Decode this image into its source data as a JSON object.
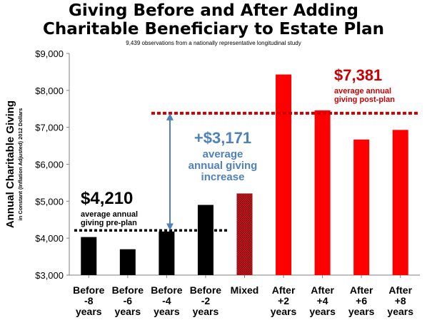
{
  "title_lines": [
    "Giving Before and After Adding",
    "Charitable Beneficiary to Estate Plan"
  ],
  "subtitle": "9,439 observations from a nationally representative longitudinal study",
  "chart_data": {
    "type": "bar",
    "categories": [
      [
        "Before",
        "-8",
        "years"
      ],
      [
        "Before",
        "-6",
        "years"
      ],
      [
        "Before",
        "-4",
        "years"
      ],
      [
        "Before",
        "-2",
        "years"
      ],
      [
        "Mixed"
      ],
      [
        "After",
        "+2",
        "years"
      ],
      [
        "After",
        "+4",
        "years"
      ],
      [
        "After",
        "+6",
        "years"
      ],
      [
        "After",
        "+8",
        "years"
      ]
    ],
    "values": [
      4030,
      3700,
      4180,
      4900,
      5210,
      8430,
      7460,
      6670,
      6930
    ],
    "bar_groups": [
      "before",
      "before",
      "before",
      "before",
      "mixed",
      "after",
      "after",
      "after",
      "after"
    ],
    "colors": {
      "before": "#000000",
      "mixed": "#c0141c",
      "after": "#ff0000",
      "pre_line": "#000000",
      "post_line": "#cc0000",
      "arrow": "#4f81bd",
      "increase_text": "#4f81bd",
      "post_text": "#cc0000"
    },
    "ylim": [
      3000,
      9000
    ],
    "yticks": [
      3000,
      4000,
      5000,
      6000,
      7000,
      8000,
      9000
    ],
    "ytick_labels": [
      "$3,000",
      "$4,000",
      "$5,000",
      "$6,000",
      "$7,000",
      "$8,000",
      "$9,000"
    ],
    "ylabel": "Annual Charitable Giving",
    "ylabel_sub": "in Constant (Inflation Adjusted) 2012  Dollars",
    "grid": false,
    "reference_lines": {
      "pre_plan": 4210,
      "post_plan": 7381
    },
    "annotations": {
      "pre": {
        "value": "$4,210",
        "lines": [
          "average annual",
          "giving pre-plan"
        ]
      },
      "post": {
        "value": "$7,381",
        "lines": [
          "average annual",
          "giving post-plan"
        ]
      },
      "increase": {
        "value": "+$3,171",
        "lines": [
          "average",
          "annual giving",
          "increase"
        ]
      }
    }
  }
}
